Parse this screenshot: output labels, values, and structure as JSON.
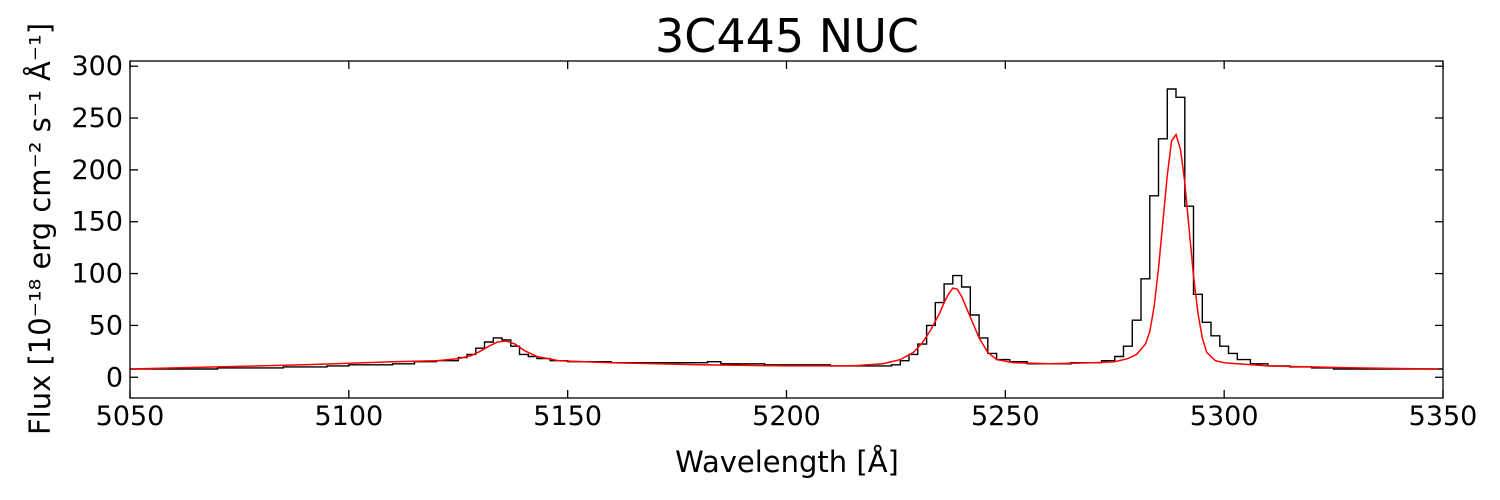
{
  "chart_data": {
    "type": "line",
    "title": "3C445 NUC",
    "xlabel": "Wavelength [Å]",
    "ylabel": "Flux [10⁻¹⁸ erg cm⁻² s⁻¹ Å⁻¹]",
    "xlim": [
      5050,
      5350
    ],
    "ylim": [
      -20,
      305
    ],
    "x_ticks": [
      5050,
      5100,
      5150,
      5200,
      5250,
      5300,
      5350
    ],
    "y_ticks": [
      0,
      50,
      100,
      150,
      200,
      250,
      300
    ],
    "grid": false,
    "colors": {
      "data": "#000000",
      "model": "#ff0000"
    },
    "series": [
      {
        "style": "steps",
        "color": "#000000",
        "x": [
          5050,
          5070,
          5075,
          5085,
          5095,
          5100,
          5110,
          5115,
          5120,
          5125,
          5127,
          5129,
          5131,
          5133,
          5135,
          5137,
          5139,
          5141,
          5143,
          5146,
          5150,
          5160,
          5170,
          5180,
          5182,
          5185,
          5195,
          5210,
          5220,
          5224,
          5226,
          5228,
          5230,
          5232,
          5234,
          5236,
          5238,
          5240,
          5242,
          5244,
          5246,
          5248,
          5251,
          5255,
          5265,
          5272,
          5275,
          5277,
          5279,
          5281,
          5283,
          5285,
          5287,
          5289,
          5291,
          5293,
          5295,
          5297,
          5299,
          5301,
          5303,
          5306,
          5310,
          5315,
          5320,
          5325,
          5330,
          5349
        ],
        "y": [
          8,
          9,
          9,
          10,
          11,
          12,
          13,
          15,
          16,
          19,
          22,
          28,
          34,
          38,
          36,
          30,
          22,
          20,
          18,
          16,
          15,
          14,
          14,
          14,
          15,
          13,
          12,
          11,
          11,
          12,
          16,
          22,
          32,
          50,
          72,
          90,
          98,
          87,
          60,
          38,
          23,
          17,
          15,
          13,
          14,
          16,
          20,
          30,
          55,
          95,
          175,
          230,
          278,
          270,
          165,
          80,
          53,
          40,
          30,
          23,
          17,
          13,
          11,
          10,
          9,
          8,
          8,
          8
        ]
      },
      {
        "style": "line",
        "color": "#ff0000",
        "x": [
          5050,
          5070,
          5090,
          5110,
          5120,
          5125,
          5128,
          5130,
          5132,
          5134,
          5136,
          5138,
          5140,
          5143,
          5148,
          5160,
          5180,
          5200,
          5215,
          5222,
          5226,
          5229,
          5231,
          5233,
          5235,
          5236,
          5237,
          5238,
          5239,
          5240,
          5242,
          5244,
          5246,
          5248,
          5252,
          5260,
          5270,
          5275,
          5278,
          5280,
          5282,
          5283,
          5284,
          5285,
          5286,
          5287,
          5288,
          5289,
          5290,
          5291,
          5292,
          5293,
          5294,
          5295,
          5296,
          5298,
          5300,
          5303,
          5310,
          5330,
          5349
        ],
        "y": [
          8,
          10,
          12,
          15,
          16,
          18,
          21,
          25,
          30,
          34,
          35,
          32,
          26,
          20,
          16,
          14,
          12,
          11,
          11,
          13,
          17,
          24,
          33,
          46,
          62,
          72,
          80,
          86,
          85,
          78,
          58,
          38,
          24,
          17,
          14,
          13,
          14,
          15,
          18,
          22,
          32,
          44,
          68,
          105,
          150,
          195,
          228,
          234,
          220,
          188,
          142,
          98,
          62,
          38,
          24,
          16,
          14,
          13,
          11,
          9,
          8
        ]
      }
    ]
  }
}
